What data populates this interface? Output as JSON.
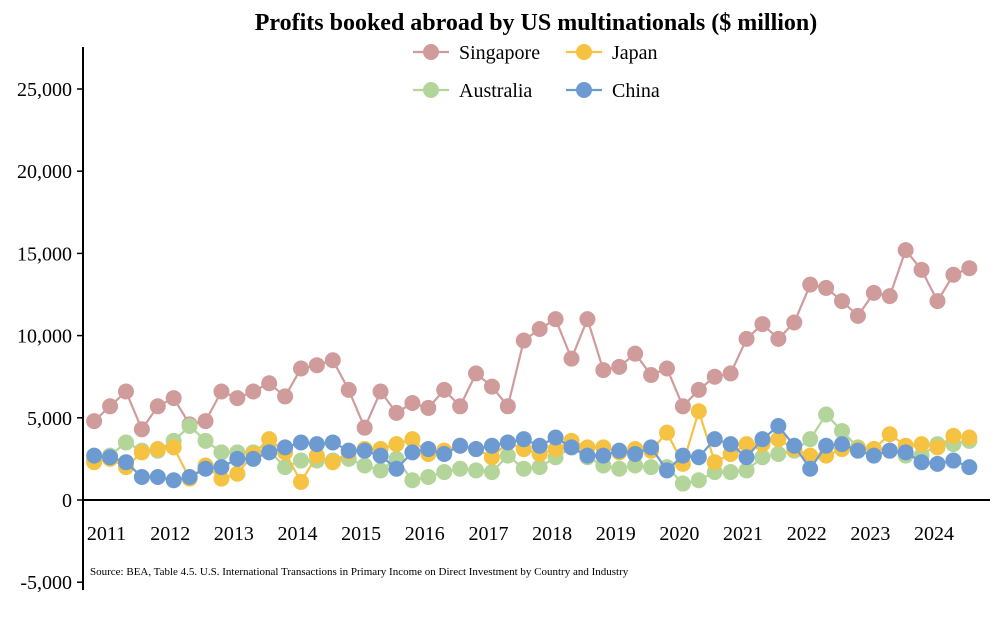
{
  "chart_data": {
    "type": "line",
    "title": "Profits booked abroad by US multinationals ($ million)",
    "xlabel": "",
    "ylabel": "",
    "ylim": [
      -5000,
      27500
    ],
    "yticks": [
      -5000,
      0,
      5000,
      10000,
      15000,
      20000,
      25000
    ],
    "ytick_labels": [
      "-5,000",
      "0",
      "5,000",
      "10,000",
      "15,000",
      "20,000",
      "25,000"
    ],
    "xlim": [
      2010.7,
      2024.95
    ],
    "xticks": [
      2011,
      2012,
      2013,
      2014,
      2015,
      2016,
      2017,
      2018,
      2019,
      2020,
      2021,
      2022,
      2023,
      2024
    ],
    "xtick_labels": [
      "2011",
      "2012",
      "2013",
      "2014",
      "2015",
      "2016",
      "2017",
      "2018",
      "2019",
      "2020",
      "2021",
      "2022",
      "2023",
      "2024"
    ],
    "legend_position": "top-center",
    "source": "Source: BEA, Table 4.5. U.S. International Transactions in Primary Income on Direct Investment by Country and Industry",
    "x": [
      2010.875,
      2011.125,
      2011.375,
      2011.625,
      2011.875,
      2012.125,
      2012.375,
      2012.625,
      2012.875,
      2013.125,
      2013.375,
      2013.625,
      2013.875,
      2014.125,
      2014.375,
      2014.625,
      2014.875,
      2015.125,
      2015.375,
      2015.625,
      2015.875,
      2016.125,
      2016.375,
      2016.625,
      2016.875,
      2017.125,
      2017.375,
      2017.625,
      2017.875,
      2018.125,
      2018.375,
      2018.625,
      2018.875,
      2019.125,
      2019.375,
      2019.625,
      2019.875,
      2020.125,
      2020.375,
      2020.625,
      2020.875,
      2021.125,
      2021.375,
      2021.625,
      2021.875,
      2022.125,
      2022.375,
      2022.625,
      2022.875,
      2023.125,
      2023.375,
      2023.625,
      2023.875,
      2024.125,
      2024.375,
      2024.625
    ],
    "series": [
      {
        "name": "Singapore",
        "color": "#d09b9b",
        "values": [
          4800,
          5700,
          6600,
          4300,
          5700,
          6200,
          4600,
          4800,
          6600,
          6200,
          6600,
          7100,
          6300,
          8000,
          8200,
          8500,
          6700,
          4400,
          6600,
          5300,
          5900,
          5600,
          6700,
          5700,
          7700,
          6900,
          5700,
          9700,
          10400,
          11000,
          8600,
          11000,
          7900,
          8100,
          8900,
          7600,
          8000,
          5700,
          6700,
          7500,
          7700,
          9800,
          10700,
          9800,
          10800,
          13100,
          12900,
          12100,
          11200,
          12600,
          12400,
          15200,
          14000,
          12100,
          13700,
          14100
        ]
      },
      {
        "name": "Australia",
        "color": "#b3d59a",
        "values": [
          2400,
          2700,
          3500,
          3000,
          3000,
          3600,
          4500,
          3600,
          2900,
          2900,
          2900,
          3000,
          2000,
          2400,
          2400,
          2400,
          2500,
          2100,
          1800,
          2500,
          1200,
          1400,
          1700,
          1900,
          1800,
          1700,
          2700,
          1900,
          2000,
          2600,
          3200,
          2600,
          2100,
          1900,
          2100,
          2000,
          2000,
          1000,
          1200,
          1700,
          1700,
          1800,
          2600,
          2800,
          3000,
          3700,
          5200,
          4200,
          3200,
          3100,
          3000,
          2700,
          2700,
          3400,
          3400,
          3600
        ]
      },
      {
        "name": "Japan",
        "color": "#f5c242",
        "values": [
          2300,
          2500,
          2000,
          2900,
          3100,
          3200,
          1300,
          2100,
          1300,
          1600,
          2800,
          3700,
          2900,
          1100,
          2700,
          2300,
          2900,
          3100,
          3100,
          3400,
          3700,
          2800,
          3000,
          3300,
          3100,
          2600,
          3500,
          3100,
          2800,
          3100,
          3600,
          3200,
          3200,
          2900,
          3100,
          3000,
          4100,
          2200,
          5400,
          2300,
          2800,
          3400,
          3400,
          3700,
          3100,
          2700,
          2700,
          3100,
          3100,
          3100,
          4000,
          3300,
          3400,
          3200,
          3900,
          3800
        ]
      },
      {
        "name": "China",
        "color": "#6d9bd1",
        "values": [
          2700,
          2600,
          2300,
          1400,
          1400,
          1200,
          1400,
          1900,
          2000,
          2500,
          2500,
          2900,
          3200,
          3500,
          3400,
          3500,
          3000,
          3000,
          2700,
          1900,
          2900,
          3100,
          2800,
          3300,
          3100,
          3300,
          3500,
          3700,
          3300,
          3800,
          3200,
          2700,
          2700,
          3000,
          2800,
          3200,
          1800,
          2700,
          2600,
          3700,
          3400,
          2600,
          3700,
          4500,
          3300,
          1900,
          3300,
          3400,
          3000,
          2700,
          3000,
          2900,
          2300,
          2200,
          2400,
          2000
        ]
      }
    ]
  }
}
